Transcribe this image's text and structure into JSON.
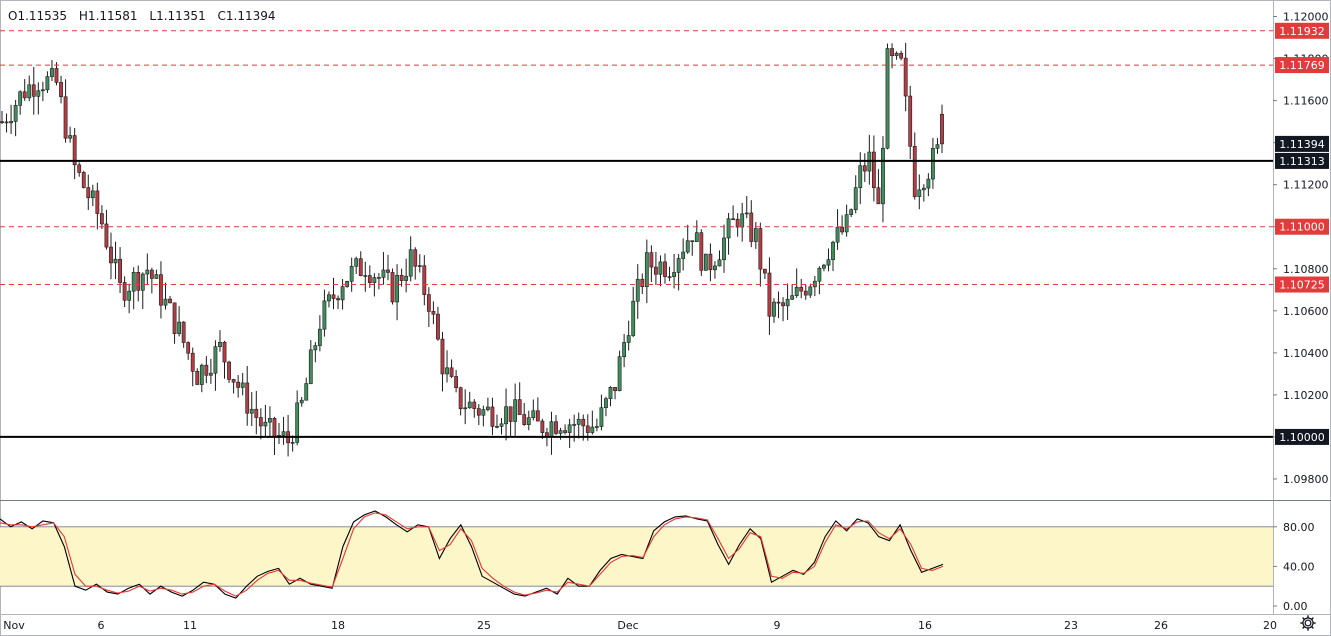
{
  "ohlc": {
    "open": "O1.11535",
    "high": "H1.11581",
    "low": "L1.11351",
    "close": "C1.11394"
  },
  "colors": {
    "up": "#26a69a",
    "down": "#ef5350",
    "upBody": "#3f8f5d",
    "downBody": "#b43c44",
    "alert": "#e23b3b",
    "stochK": "#000000",
    "stochD": "#e53935",
    "band": "#fdf6c9"
  },
  "chart_data": [
    {
      "type": "candlestick",
      "title": "",
      "ylim": [
        1.097,
        1.1205
      ],
      "y_ticks": [
        "1.12000",
        "1.11800",
        "1.11600",
        "1.11400",
        "1.11200",
        "1.11000",
        "1.10800",
        "1.10600",
        "1.10400",
        "1.10200",
        "1.10000",
        "1.09800"
      ],
      "x_ticks": [
        "Nov",
        "6",
        "11",
        "18",
        "25",
        "Dec",
        "9",
        "16",
        "23",
        "26",
        "20"
      ],
      "last_price": "1.11394",
      "horizontal_lines": [
        {
          "value": 1.11313,
          "label": "1.11313",
          "style": "solid"
        },
        {
          "value": 1.1,
          "label": "1.10000",
          "style": "solid"
        },
        {
          "value": 1.11932,
          "label": "1.11932",
          "style": "dashed"
        },
        {
          "value": 1.11769,
          "label": "1.11769",
          "style": "dashed"
        },
        {
          "value": 1.11,
          "label": "1.11000",
          "style": "dashed"
        },
        {
          "value": 1.10725,
          "label": "1.10725",
          "style": "dashed"
        }
      ],
      "anchors": [
        [
          0,
          1.115
        ],
        [
          5,
          1.1165
        ],
        [
          8,
          1.117
        ],
        [
          12,
          1.1168
        ],
        [
          16,
          1.1128
        ],
        [
          22,
          1.1102
        ],
        [
          26,
          1.107
        ],
        [
          32,
          1.108
        ],
        [
          38,
          1.1055
        ],
        [
          43,
          1.103
        ],
        [
          48,
          1.1042
        ],
        [
          53,
          1.102
        ],
        [
          58,
          1.1003
        ],
        [
          63,
          1.0998
        ],
        [
          66,
          1.1015
        ],
        [
          70,
          1.1055
        ],
        [
          75,
          1.1075
        ],
        [
          80,
          1.1082
        ],
        [
          86,
          1.107
        ],
        [
          90,
          1.1085
        ],
        [
          94,
          1.1065
        ],
        [
          97,
          1.1035
        ],
        [
          100,
          1.1018
        ],
        [
          106,
          1.1012
        ],
        [
          112,
          1.1012
        ],
        [
          118,
          1.1005
        ],
        [
          123,
          1.1008
        ],
        [
          127,
          1.1006
        ],
        [
          131,
          1.1005
        ],
        [
          135,
          1.1025
        ],
        [
          138,
          1.1055
        ],
        [
          142,
          1.1082
        ],
        [
          147,
          1.1082
        ],
        [
          152,
          1.1098
        ],
        [
          155,
          1.108
        ],
        [
          158,
          1.109
        ],
        [
          162,
          1.1105
        ],
        [
          166,
          1.1095
        ],
        [
          169,
          1.106
        ],
        [
          173,
          1.1062
        ],
        [
          178,
          1.1075
        ],
        [
          182,
          1.109
        ],
        [
          186,
          1.11
        ],
        [
          189,
          1.1125
        ],
        [
          191,
          1.1132
        ],
        [
          193,
          1.1108
        ],
        [
          195,
          1.1178
        ],
        [
          198,
          1.1176
        ],
        [
          201,
          1.112
        ],
        [
          204,
          1.1128
        ],
        [
          207,
          1.1139
        ]
      ],
      "n_candles": 208
    },
    {
      "type": "line",
      "title": "",
      "ylim": [
        0,
        100
      ],
      "y_ticks": [
        "80.00",
        "40.00",
        "0.00"
      ],
      "band": [
        20,
        80
      ],
      "series": [
        {
          "name": "",
          "values": [
            88,
            80,
            85,
            78,
            86,
            84,
            60,
            20,
            16,
            22,
            14,
            12,
            18,
            22,
            12,
            20,
            14,
            10,
            16,
            24,
            22,
            12,
            8,
            20,
            30,
            35,
            38,
            22,
            28,
            22,
            20,
            18,
            60,
            85,
            92,
            96,
            90,
            82,
            75,
            82,
            80,
            48,
            68,
            82,
            60,
            30,
            24,
            18,
            12,
            10,
            14,
            18,
            12,
            28,
            20,
            20,
            36,
            48,
            52,
            50,
            48,
            76,
            85,
            90,
            91,
            88,
            86,
            62,
            42,
            62,
            78,
            68,
            24,
            30,
            36,
            32,
            44,
            70,
            86,
            76,
            88,
            84,
            70,
            66,
            82,
            56,
            34,
            38,
            42
          ]
        },
        {
          "name": "",
          "values": [
            84,
            82,
            82,
            80,
            82,
            84,
            70,
            32,
            20,
            20,
            16,
            13,
            15,
            20,
            15,
            18,
            16,
            12,
            14,
            20,
            22,
            15,
            10,
            16,
            26,
            33,
            36,
            26,
            26,
            23,
            21,
            19,
            48,
            78,
            90,
            94,
            92,
            85,
            78,
            80,
            80,
            56,
            62,
            78,
            66,
            38,
            28,
            20,
            14,
            11,
            13,
            16,
            14,
            24,
            22,
            20,
            32,
            44,
            50,
            51,
            49,
            70,
            82,
            88,
            90,
            89,
            87,
            68,
            48,
            58,
            74,
            70,
            30,
            28,
            34,
            33,
            40,
            64,
            82,
            78,
            85,
            86,
            74,
            68,
            78,
            62,
            38,
            36,
            40
          ]
        }
      ]
    }
  ]
}
